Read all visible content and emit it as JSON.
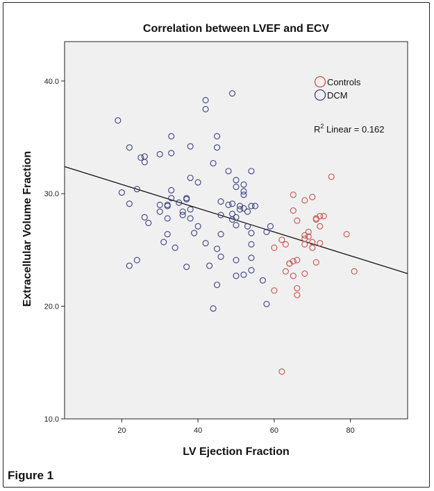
{
  "figure_label": "Figure 1",
  "chart_data": {
    "type": "scatter",
    "title": "Correlation between LVEF and ECV",
    "xlabel": "LV Ejection Fraction",
    "ylabel": "Extracellular Volume Fraction",
    "xlim": [
      5,
      95
    ],
    "ylim": [
      10,
      43.5
    ],
    "x_ticks": [
      20,
      40,
      60,
      80
    ],
    "y_ticks": [
      10,
      20,
      30,
      40
    ],
    "y_tick_labels": [
      "10.0",
      "20.0",
      "30.0",
      "40.0"
    ],
    "grid": false,
    "legend_position": "top-right",
    "fit_label": "R² Linear = 0.162",
    "fit_line": {
      "x": [
        5,
        95
      ],
      "y": [
        32.4,
        22.9
      ]
    },
    "series": [
      {
        "name": "DCM",
        "color": "#3b3f7e",
        "points": [
          [
            19,
            36.5
          ],
          [
            20,
            30.1
          ],
          [
            22,
            34.1
          ],
          [
            22,
            29.1
          ],
          [
            22,
            23.6
          ],
          [
            24,
            30.4
          ],
          [
            24,
            24.1
          ],
          [
            25,
            33.2
          ],
          [
            26,
            33.3
          ],
          [
            26,
            32.8
          ],
          [
            26,
            27.9
          ],
          [
            27,
            27.4
          ],
          [
            30,
            33.5
          ],
          [
            30,
            29.0
          ],
          [
            30,
            28.4
          ],
          [
            31,
            25.7
          ],
          [
            32,
            29.0
          ],
          [
            32,
            28.9
          ],
          [
            32,
            27.8
          ],
          [
            32,
            26.4
          ],
          [
            33,
            35.1
          ],
          [
            33,
            33.6
          ],
          [
            33,
            30.3
          ],
          [
            33,
            29.6
          ],
          [
            34,
            25.2
          ],
          [
            35,
            29.2
          ],
          [
            36,
            28.4
          ],
          [
            36,
            28.1
          ],
          [
            37,
            29.6
          ],
          [
            37,
            29.5
          ],
          [
            37,
            23.5
          ],
          [
            38,
            34.2
          ],
          [
            38,
            31.4
          ],
          [
            38,
            28.6
          ],
          [
            38,
            27.8
          ],
          [
            39,
            26.5
          ],
          [
            40,
            31.0
          ],
          [
            40,
            27.1
          ],
          [
            42,
            38.3
          ],
          [
            42,
            37.5
          ],
          [
            42,
            25.6
          ],
          [
            43,
            23.6
          ],
          [
            44,
            32.7
          ],
          [
            44,
            19.8
          ],
          [
            45,
            35.1
          ],
          [
            45,
            34.1
          ],
          [
            45,
            25.1
          ],
          [
            45,
            21.9
          ],
          [
            46,
            29.3
          ],
          [
            46,
            28.1
          ],
          [
            46,
            24.4
          ],
          [
            46,
            26.4
          ],
          [
            48,
            32.0
          ],
          [
            48,
            29.0
          ],
          [
            49,
            38.9
          ],
          [
            49,
            29.1
          ],
          [
            49,
            28.2
          ],
          [
            49,
            27.7
          ],
          [
            50,
            31.2
          ],
          [
            50,
            30.6
          ],
          [
            50,
            27.9
          ],
          [
            50,
            27.2
          ],
          [
            50,
            24.1
          ],
          [
            50,
            22.7
          ],
          [
            51,
            28.9
          ],
          [
            51,
            28.6
          ],
          [
            52,
            30.8
          ],
          [
            52,
            30.2
          ],
          [
            52,
            29.9
          ],
          [
            52,
            28.7
          ],
          [
            52,
            22.8
          ],
          [
            53,
            28.4
          ],
          [
            53,
            27.1
          ],
          [
            54,
            32.0
          ],
          [
            54,
            28.9
          ],
          [
            54,
            26.5
          ],
          [
            54,
            25.5
          ],
          [
            54,
            24.3
          ],
          [
            54,
            23.2
          ],
          [
            55,
            28.9
          ],
          [
            57,
            22.3
          ],
          [
            58,
            20.2
          ],
          [
            58,
            26.6
          ],
          [
            59,
            27.1
          ]
        ]
      },
      {
        "name": "Controls",
        "color": "#c94f4f",
        "points": [
          [
            60,
            25.2
          ],
          [
            60,
            21.4
          ],
          [
            62,
            25.9
          ],
          [
            62,
            14.2
          ],
          [
            63,
            25.5
          ],
          [
            63,
            23.1
          ],
          [
            64,
            23.8
          ],
          [
            64,
            23.8
          ],
          [
            65,
            29.9
          ],
          [
            65,
            28.5
          ],
          [
            65,
            24.0
          ],
          [
            65,
            22.7
          ],
          [
            66,
            27.6
          ],
          [
            66,
            24.1
          ],
          [
            66,
            21.6
          ],
          [
            66,
            21.0
          ],
          [
            68,
            29.4
          ],
          [
            68,
            26.3
          ],
          [
            68,
            26.0
          ],
          [
            68,
            25.5
          ],
          [
            68,
            22.9
          ],
          [
            69,
            26.6
          ],
          [
            69,
            26.2
          ],
          [
            70,
            29.7
          ],
          [
            70,
            25.7
          ],
          [
            70,
            25.2
          ],
          [
            71,
            27.8
          ],
          [
            71,
            27.7
          ],
          [
            71,
            23.9
          ],
          [
            72,
            28.0
          ],
          [
            72,
            27.1
          ],
          [
            72,
            25.6
          ],
          [
            73,
            28.0
          ],
          [
            75,
            31.5
          ],
          [
            79,
            26.4
          ],
          [
            81,
            23.1
          ]
        ]
      }
    ]
  }
}
